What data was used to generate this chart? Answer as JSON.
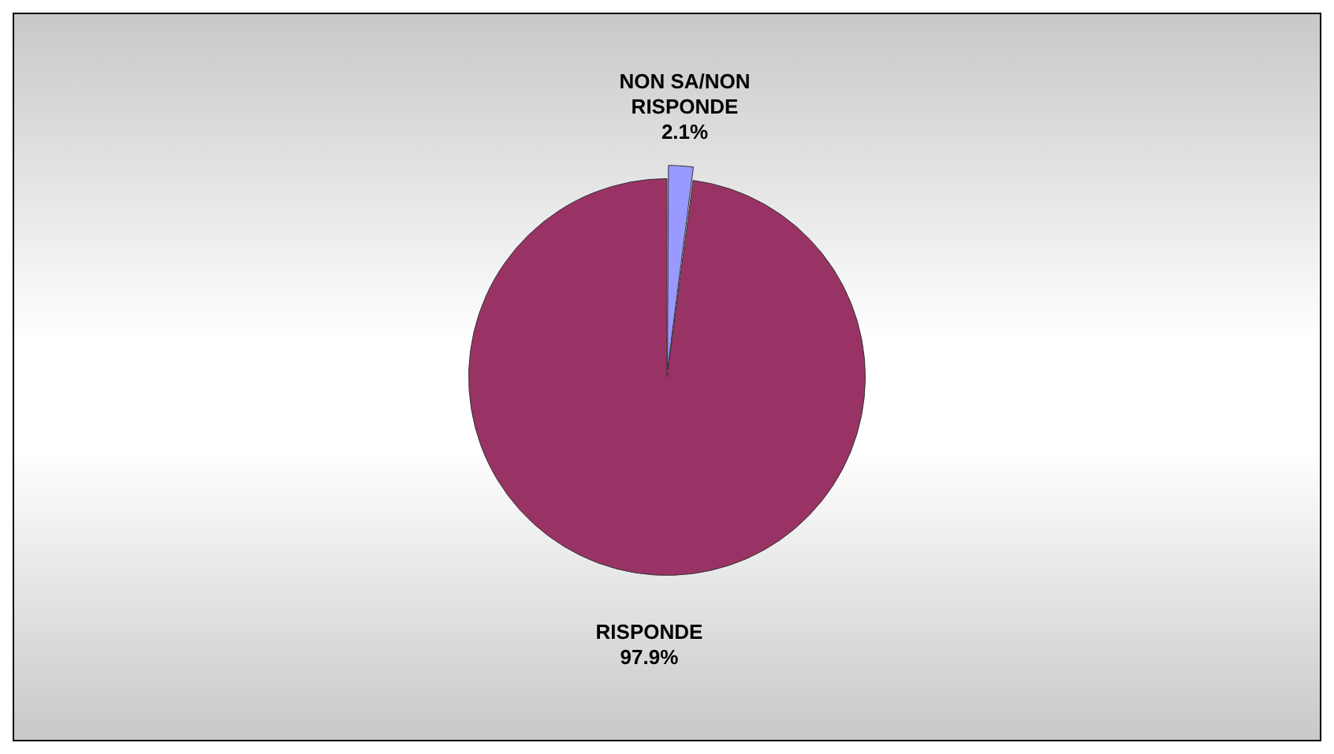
{
  "chart_data": {
    "type": "pie",
    "categories": [
      "NON SA/NON RISPONDE",
      "RISPONDE"
    ],
    "values": [
      2.1,
      97.9
    ],
    "colors": [
      "#9999ff",
      "#993366"
    ],
    "value_labels": [
      "2.1%",
      "97.9%"
    ],
    "legend": false
  }
}
